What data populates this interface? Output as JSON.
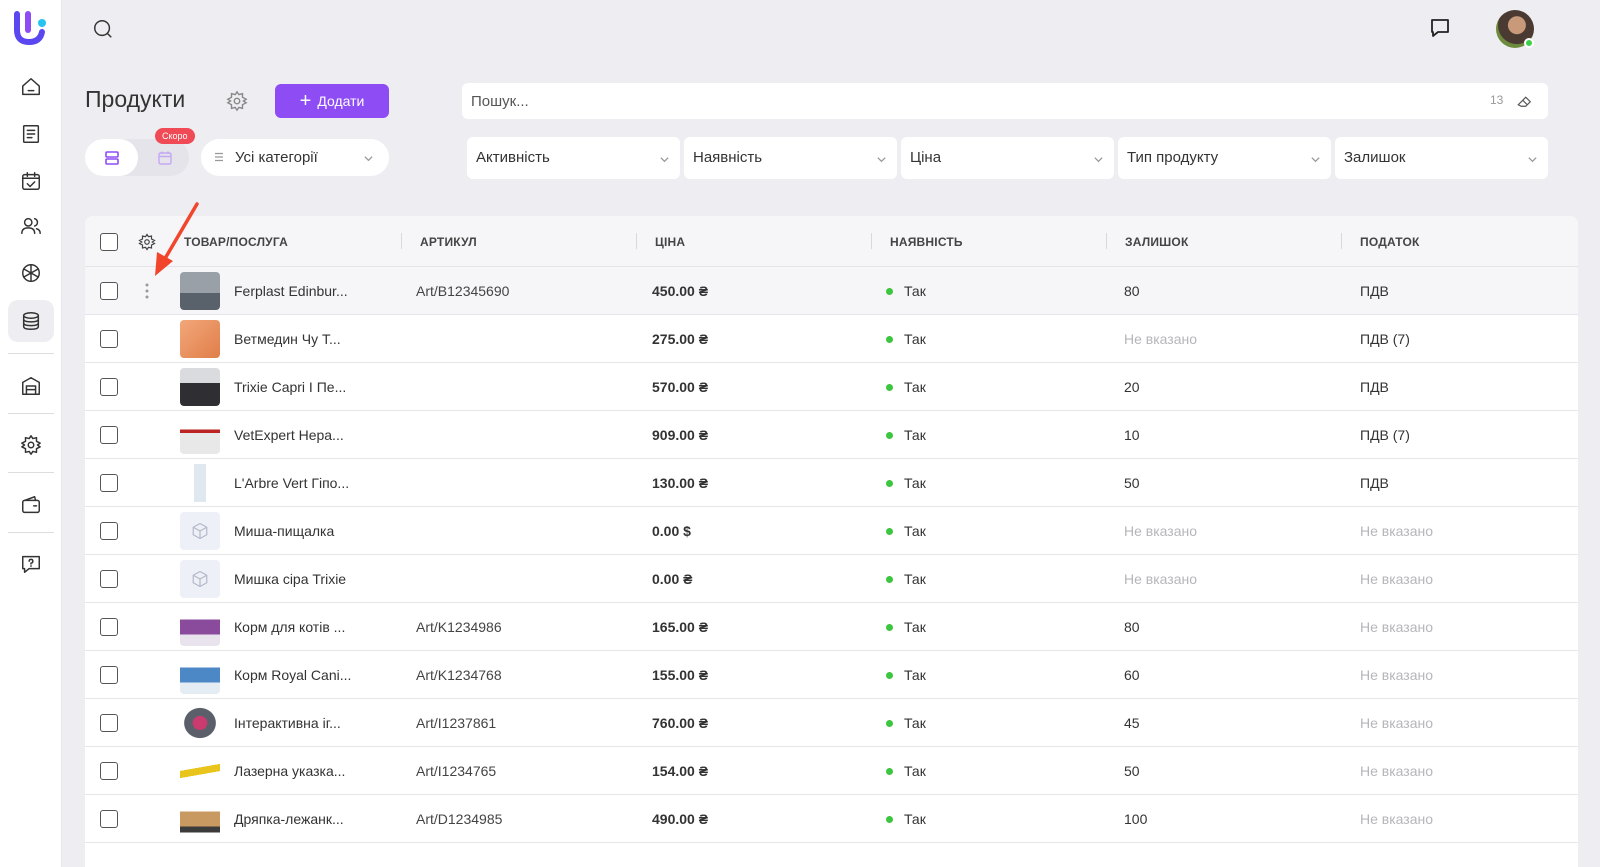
{
  "app": {
    "accent": "#8e4cf5",
    "badge_color": "#ef4a55",
    "status_ok_color": "#3ec43e"
  },
  "sidebar": {
    "items": [
      {
        "name": "home-icon",
        "active": false
      },
      {
        "name": "journal-icon",
        "active": false
      },
      {
        "name": "calendar-check-icon",
        "active": false
      },
      {
        "name": "clients-icon",
        "active": false
      },
      {
        "name": "services-icon",
        "active": false
      },
      {
        "name": "products-icon",
        "active": true
      },
      {
        "name": "warehouse-icon",
        "active": false
      },
      {
        "name": "settings-icon",
        "active": false
      },
      {
        "name": "wallet-icon",
        "active": false
      },
      {
        "name": "help-icon",
        "active": false
      }
    ]
  },
  "header": {
    "title": "Продукти",
    "add_label": "Додати",
    "search_placeholder": "Пошук...",
    "search_count": "13",
    "soon_badge": "Скоро",
    "category": "Усі категорії",
    "filters": [
      "Активність",
      "Наявність",
      "Ціна",
      "Тип продукту",
      "Залишок"
    ]
  },
  "table": {
    "columns": [
      "ТОВАР/ПОСЛУГА",
      "АРТИКУЛ",
      "ЦІНА",
      "НАЯВНІСТЬ",
      "ЗАЛИШОК",
      "ПОДАТОК"
    ],
    "rows": [
      {
        "name": "Ferplast Edinbur...",
        "sku": "Art/B12345690",
        "price": "450.00 ₴",
        "availability": "Так",
        "stock": "80",
        "tax": "ПДВ"
      },
      {
        "name": "Ветмедин Чу Т...",
        "sku": "",
        "price": "275.00 ₴",
        "availability": "Так",
        "stock": "Не вказано",
        "tax": "ПДВ (7)"
      },
      {
        "name": "Trixie Capri I Пе...",
        "sku": "",
        "price": "570.00 ₴",
        "availability": "Так",
        "stock": "20",
        "tax": "ПДВ"
      },
      {
        "name": "VetExpert Hepa...",
        "sku": "",
        "price": "909.00 ₴",
        "availability": "Так",
        "stock": "10",
        "tax": "ПДВ (7)"
      },
      {
        "name": "L'Arbre Vert Гіпо...",
        "sku": "",
        "price": "130.00 ₴",
        "availability": "Так",
        "stock": "50",
        "tax": "ПДВ"
      },
      {
        "name": "Миша-пищалка",
        "sku": "",
        "price": "0.00 $",
        "availability": "Так",
        "stock": "Не вказано",
        "tax": "Не вказано"
      },
      {
        "name": "Мишка сіра Trixie",
        "sku": "",
        "price": "0.00 ₴",
        "availability": "Так",
        "stock": "Не вказано",
        "tax": "Не вказано"
      },
      {
        "name": "Корм для котів ...",
        "sku": "Art/K1234986",
        "price": "165.00 ₴",
        "availability": "Так",
        "stock": "80",
        "tax": "Не вказано"
      },
      {
        "name": "Корм Royal Cani...",
        "sku": "Art/K1234768",
        "price": "155.00 ₴",
        "availability": "Так",
        "stock": "60",
        "tax": "Не вказано"
      },
      {
        "name": "Інтерактивна іг...",
        "sku": "Art/I1237861",
        "price": "760.00 ₴",
        "availability": "Так",
        "stock": "45",
        "tax": "Не вказано"
      },
      {
        "name": "Лазерна указка...",
        "sku": "Art/I1234765",
        "price": "154.00 ₴",
        "availability": "Так",
        "stock": "50",
        "tax": "Не вказано"
      },
      {
        "name": "Дряпка-лежанк...",
        "sku": "Art/D1234985",
        "price": "490.00 ₴",
        "availability": "Так",
        "stock": "100",
        "tax": "Не вказано"
      }
    ]
  }
}
